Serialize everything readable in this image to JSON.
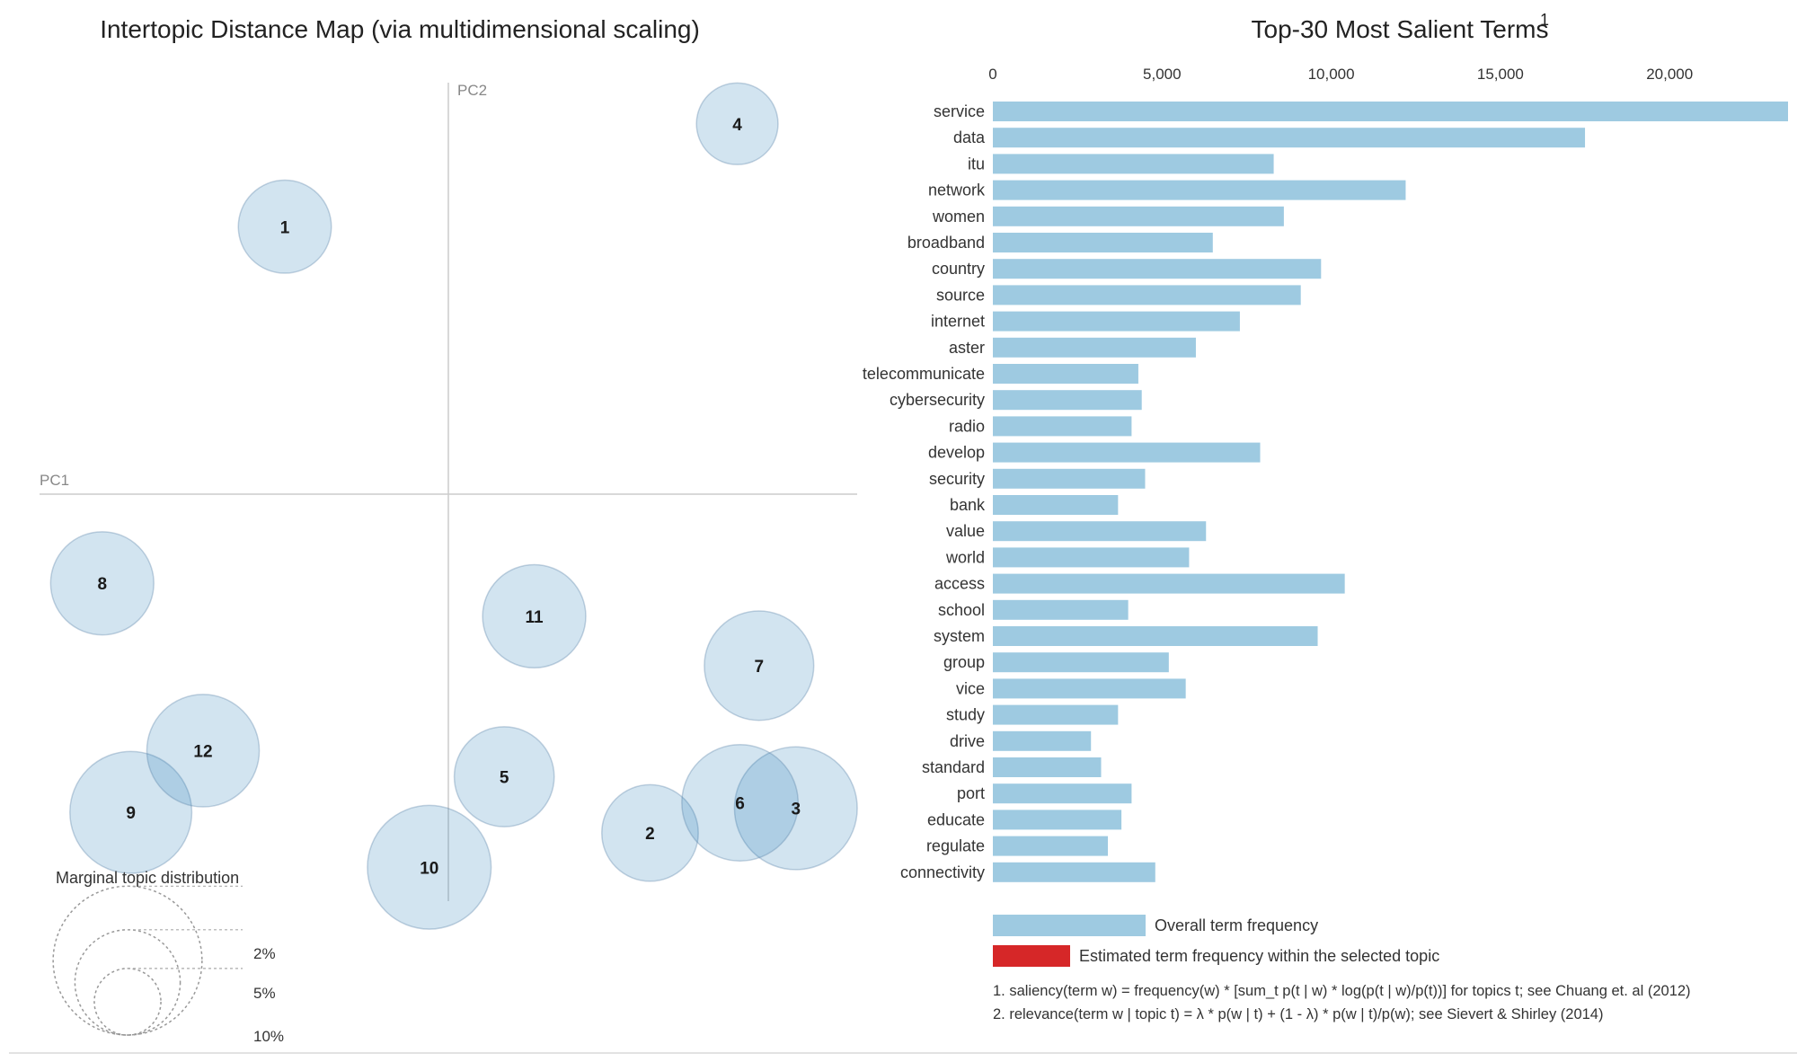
{
  "chart_data": [
    {
      "type": "scatter",
      "title": "Intertopic Distance Map (via multidimensional scaling)",
      "xlabel": "PC1",
      "ylabel": "PC2",
      "xlim": [
        -0.3,
        0.3
      ],
      "ylim": [
        -0.3,
        0.3
      ],
      "topics": [
        {
          "id": "1",
          "pc1": -0.12,
          "pc2": 0.195,
          "share": 3.9
        },
        {
          "id": "2",
          "pc1": 0.148,
          "pc2": -0.247,
          "share": 4.2
        },
        {
          "id": "3",
          "pc1": 0.255,
          "pc2": -0.229,
          "share": 6.8
        },
        {
          "id": "4",
          "pc1": 0.212,
          "pc2": 0.27,
          "share": 3.0
        },
        {
          "id": "5",
          "pc1": 0.041,
          "pc2": -0.206,
          "share": 4.5
        },
        {
          "id": "6",
          "pc1": 0.214,
          "pc2": -0.225,
          "share": 6.1
        },
        {
          "id": "7",
          "pc1": 0.228,
          "pc2": -0.125,
          "share": 5.4
        },
        {
          "id": "8",
          "pc1": -0.254,
          "pc2": -0.065,
          "share": 4.8
        },
        {
          "id": "9",
          "pc1": -0.233,
          "pc2": -0.232,
          "share": 6.7
        },
        {
          "id": "10",
          "pc1": -0.014,
          "pc2": -0.272,
          "share": 6.9
        },
        {
          "id": "11",
          "pc1": 0.063,
          "pc2": -0.089,
          "share": 4.8
        },
        {
          "id": "12",
          "pc1": -0.18,
          "pc2": -0.187,
          "share": 5.7
        }
      ],
      "legend": {
        "title": "Marginal topic distribution",
        "items": [
          {
            "label": "2%",
            "share": 2
          },
          {
            "label": "5%",
            "share": 5
          },
          {
            "label": "10%",
            "share": 10
          }
        ]
      }
    },
    {
      "type": "bar",
      "orientation": "horizontal",
      "title": "Top-30 Most Salient Terms",
      "title_superscript": "1",
      "xlim": [
        0,
        23500
      ],
      "ticks": [
        {
          "value": 0,
          "label": "0"
        },
        {
          "value": 5000,
          "label": "5,000"
        },
        {
          "value": 10000,
          "label": "10,000"
        },
        {
          "value": 15000,
          "label": "15,000"
        },
        {
          "value": 20000,
          "label": "20,000"
        }
      ],
      "categories": [
        "service",
        "data",
        "itu",
        "network",
        "women",
        "broadband",
        "country",
        "source",
        "internet",
        "aster",
        "telecommunicate",
        "cybersecurity",
        "radio",
        "develop",
        "security",
        "bank",
        "value",
        "world",
        "access",
        "school",
        "system",
        "group",
        "vice",
        "study",
        "drive",
        "standard",
        "port",
        "educate",
        "regulate",
        "connectivity"
      ],
      "series": [
        {
          "name": "Overall term frequency",
          "color": "#9ecae1",
          "values": [
            23500,
            17500,
            8300,
            12200,
            8600,
            6500,
            9700,
            9100,
            7300,
            6000,
            4300,
            4400,
            4100,
            7900,
            4500,
            3700,
            6300,
            5800,
            10400,
            4000,
            9600,
            5200,
            5700,
            3700,
            2900,
            3200,
            4100,
            3800,
            3400,
            4800
          ]
        }
      ],
      "legend": [
        {
          "label": "Overall term frequency",
          "color": "#9ecae1"
        },
        {
          "label": "Estimated term frequency within the selected topic",
          "color": "#d62728"
        }
      ],
      "footnotes": [
        "1. saliency(term w) = frequency(w) * [sum_t p(t | w) * log(p(t | w)/p(t))] for topics t; see Chuang et. al (2012)",
        "2. relevance(term w | topic t) = λ * p(w | t) + (1 - λ) * p(w | t)/p(w); see Sievert & Shirley (2014)"
      ]
    }
  ]
}
